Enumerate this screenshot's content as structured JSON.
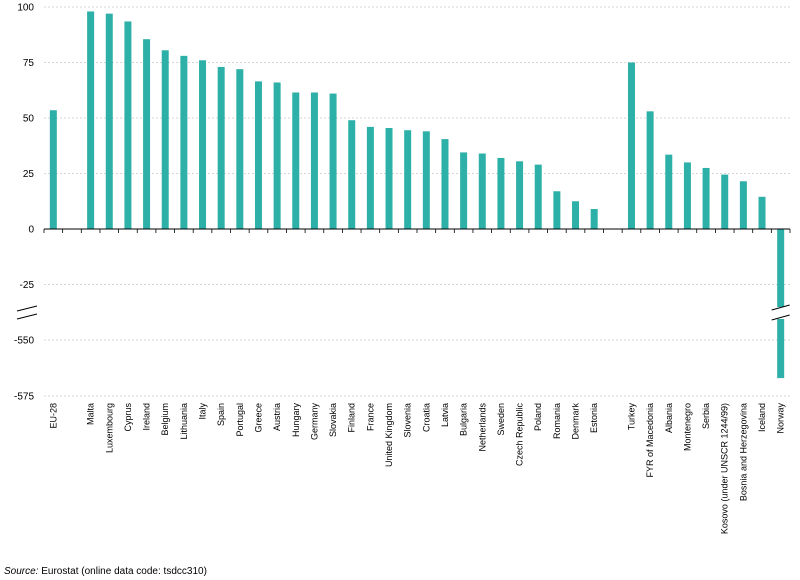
{
  "chart_data": {
    "type": "bar",
    "title": "",
    "xlabel": "",
    "ylabel": "",
    "bar_color": "#2db0a8",
    "broken_axis": true,
    "upper_segment_ylim": [
      -25,
      100
    ],
    "lower_segment_ylim": [
      -575,
      -550
    ],
    "yticks": [
      100,
      75,
      50,
      25,
      0,
      -25,
      -550,
      -575
    ],
    "grid": true,
    "categories": [
      "EU-28",
      "",
      "Malta",
      "Luxembourg",
      "Cyprus",
      "Ireland",
      "Belgium",
      "Lithuania",
      "Italy",
      "Spain",
      "Portugal",
      "Greece",
      "Austria",
      "Hungary",
      "Germany",
      "Slovakia",
      "Finland",
      "France",
      "United Kingdom",
      "Slovenia",
      "Croatia",
      "Latvia",
      "Bulgaria",
      "Netherlands",
      "Sweden",
      "Czech Republic",
      "Poland",
      "Romania",
      "Denmark",
      "Estonia",
      "",
      "Turkey",
      "FYR of Macedonia",
      "Albania",
      "Montenegro",
      "Serbia",
      "Kosovo (under UNSCR 1244/99)",
      "Bosnia and Herzegovina",
      "Iceland",
      "Norway"
    ],
    "values": [
      53.5,
      null,
      98,
      97,
      93.5,
      85.5,
      80.5,
      78,
      76,
      73,
      72,
      66.5,
      66,
      61.5,
      61.5,
      61,
      49,
      46,
      45.5,
      44.5,
      44,
      40.5,
      34.5,
      34,
      32,
      30.5,
      29,
      17,
      12.5,
      9,
      null,
      75,
      53,
      33.5,
      30,
      27.5,
      24.5,
      21.5,
      14.5,
      -567
    ]
  },
  "source": {
    "label": "Source:",
    "text": "Eurostat (online data code: tsdcc310)"
  }
}
